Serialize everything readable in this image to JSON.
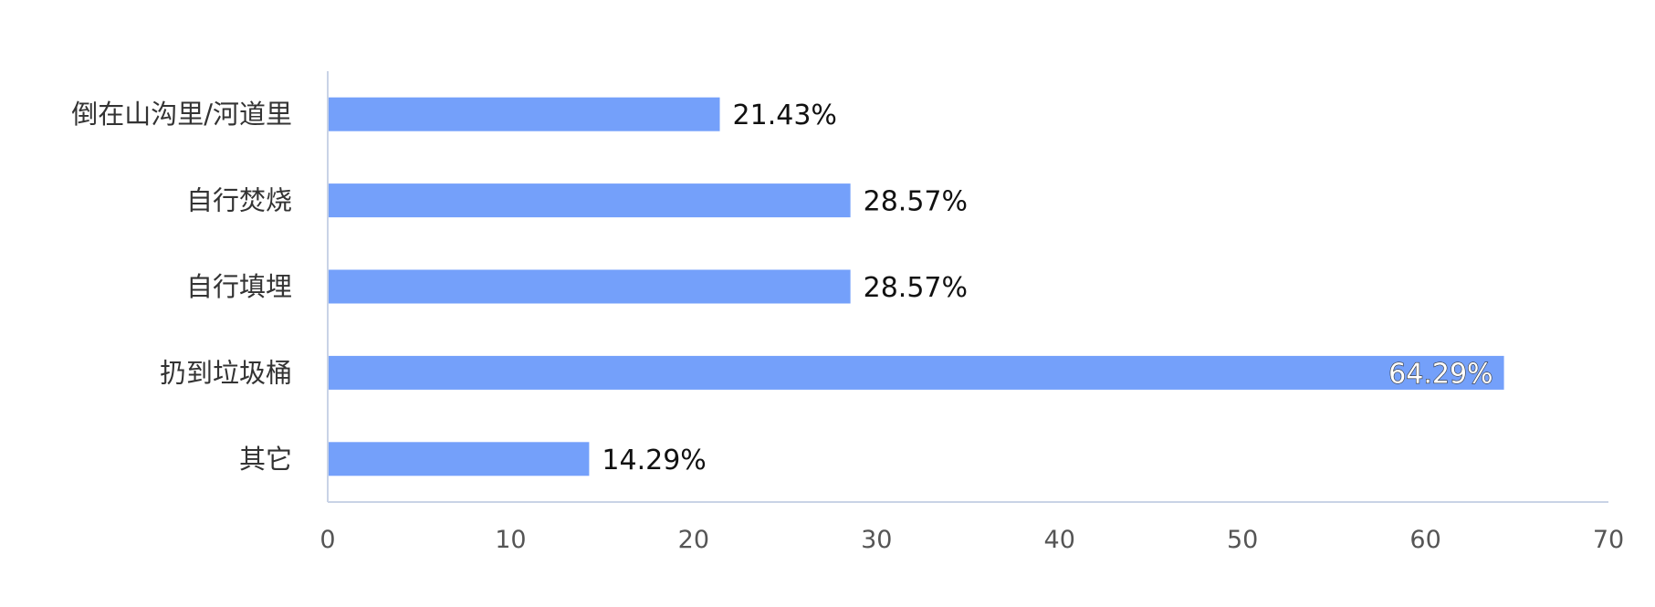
{
  "chart_data": {
    "type": "bar",
    "orientation": "horizontal",
    "categories": [
      "倒在山沟里/河道里",
      "自行焚烧",
      "自行填埋",
      "扔到垃圾桶",
      "其它"
    ],
    "values": [
      21.43,
      28.57,
      28.57,
      64.29,
      14.29
    ],
    "data_labels": [
      "21.43%",
      "28.57%",
      "28.57%",
      "64.29%",
      "14.29%"
    ],
    "xlim": [
      0,
      70
    ],
    "x_ticks": [
      0,
      10,
      20,
      30,
      40,
      50,
      60,
      70
    ],
    "x_tick_labels": [
      "0",
      "10",
      "20",
      "30",
      "40",
      "50",
      "60",
      "70"
    ],
    "grid": false,
    "legend": "none",
    "colors": {
      "bar": "#74a0fa",
      "axis": "#c9d3e6"
    }
  }
}
